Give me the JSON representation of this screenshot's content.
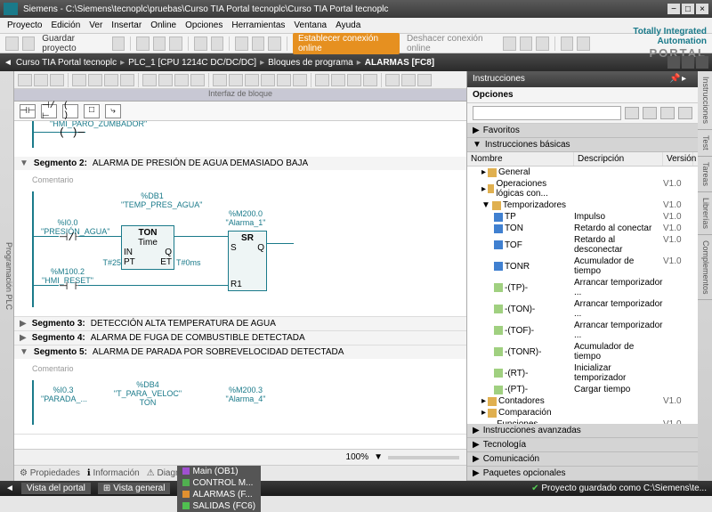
{
  "title": "Siemens  -  C:\\Siemens\\tecnoplc\\pruebas\\Curso TIA Portal tecnoplc\\Curso TIA Portal tecnoplc",
  "menu": [
    "Proyecto",
    "Edición",
    "Ver",
    "Insertar",
    "Online",
    "Opciones",
    "Herramientas",
    "Ventana",
    "Ayuda"
  ],
  "save": "Guardar proyecto",
  "connectOnline": "Establecer conexión online",
  "disconnectOnline": "Deshacer conexión online",
  "branding": {
    "line1": "Totally Integrated Automation",
    "line2": "PORTAL"
  },
  "breadcrumb": [
    "Curso TIA Portal tecnoplc",
    "PLC_1 [CPU 1214C DC/DC/DC]",
    "Bloques de programa",
    "ALARMAS [FC8]"
  ],
  "interfaceBar": "Interfaz de bloque",
  "segments": {
    "s2": {
      "title": "Segmento 2:",
      "desc": "ALARMA DE PRESIÓN DE AGUA DEMASIADO BAJA",
      "comment": "Comentario",
      "db": "%DB1",
      "dbname": "\"TEMP_PRES_AGUA\"",
      "c1addr": "%I0.0",
      "c1name": "\"PRESIÓN_AGUA\"",
      "tonType": "TON",
      "tonLabel": "Time",
      "tonIN": "IN",
      "tonQ": "Q",
      "tonPT": "PT",
      "tonET": "ET",
      "tonPTval": "T#25",
      "tonETval": "T#0ms",
      "c2addr": "%M100.2",
      "c2name": "\"HMI_RESET\"",
      "sraddr": "%M200.0",
      "srname": "\"Alarma_1\"",
      "srType": "SR",
      "srS": "S",
      "srQ": "Q",
      "srR": "R1"
    },
    "s3": {
      "title": "Segmento 3:",
      "desc": "DETECCIÓN ALTA TEMPERATURA DE AGUA"
    },
    "s4": {
      "title": "Segmento 4:",
      "desc": "ALARMA DE FUGA DE COMBUSTIBLE DETECTADA"
    },
    "s5": {
      "title": "Segmento 5:",
      "desc": "ALARMA DE PARADA POR SOBREVELOCIDAD DETECTADA",
      "comment": "Comentario",
      "c1addr": "%I0.3",
      "c1name": "\"PARADA_...",
      "db": "%DB4",
      "dbname": "\"T_PARA_VELOC\"",
      "tonType": "TON",
      "sraddr": "%M200.3",
      "srname": "\"Alarma_4\""
    },
    "coil1": "\"HMI_PARO_ZUMBADOR\""
  },
  "zoom": "100%",
  "tabs": {
    "prop": "Propiedades",
    "info": "Información",
    "diag": "Diagnóstico"
  },
  "rp": {
    "title": "Instrucciones",
    "options": "Opciones",
    "fav": "Favoritos",
    "basic": "Instrucciones básicas",
    "cols": {
      "name": "Nombre",
      "desc": "Descripción",
      "ver": "Versión"
    },
    "tree": [
      {
        "ind": 1,
        "i": "folder",
        "n": "General",
        "d": "",
        "v": ""
      },
      {
        "ind": 1,
        "i": "folder",
        "n": "Operaciones lógicas con...",
        "d": "",
        "v": "V1.0"
      },
      {
        "ind": 1,
        "i": "folder",
        "n": "Temporizadores",
        "d": "",
        "v": "V1.0",
        "open": true
      },
      {
        "ind": 2,
        "i": "timer",
        "n": "TP",
        "d": "Impulso",
        "v": "V1.0"
      },
      {
        "ind": 2,
        "i": "timer",
        "n": "TON",
        "d": "Retardo al conectar",
        "v": "V1.0"
      },
      {
        "ind": 2,
        "i": "timer",
        "n": "TOF",
        "d": "Retardo al desconectar",
        "v": "V1.0"
      },
      {
        "ind": 2,
        "i": "timer",
        "n": "TONR",
        "d": "Acumulador de tiempo",
        "v": "V1.0"
      },
      {
        "ind": 2,
        "i": "fn",
        "n": "-(TP)-",
        "d": "Arrancar temporizador ...",
        "v": ""
      },
      {
        "ind": 2,
        "i": "fn",
        "n": "-(TON)-",
        "d": "Arrancar temporizador ...",
        "v": ""
      },
      {
        "ind": 2,
        "i": "fn",
        "n": "-(TOF)-",
        "d": "Arrancar temporizador ...",
        "v": ""
      },
      {
        "ind": 2,
        "i": "fn",
        "n": "-(TONR)-",
        "d": "Acumulador de tiempo",
        "v": ""
      },
      {
        "ind": 2,
        "i": "fn",
        "n": "-(RT)-",
        "d": "Inicializar temporizador",
        "v": ""
      },
      {
        "ind": 2,
        "i": "fn",
        "n": "-(PT)-",
        "d": "Cargar tiempo",
        "v": ""
      },
      {
        "ind": 1,
        "i": "folder",
        "n": "Contadores",
        "d": "",
        "v": "V1.0"
      },
      {
        "ind": 1,
        "i": "folder",
        "n": "Comparación",
        "d": "",
        "v": ""
      },
      {
        "ind": 1,
        "i": "folder",
        "n": "Funciones matemáticas",
        "d": "",
        "v": "V1.0"
      },
      {
        "ind": 1,
        "i": "folder",
        "n": "Transferencia",
        "d": "",
        "v": "V2.4",
        "link": true
      },
      {
        "ind": 1,
        "i": "folder",
        "n": "Conversión",
        "d": "",
        "v": ""
      },
      {
        "ind": 1,
        "i": "folder",
        "n": "Control del programa",
        "d": "",
        "v": "V1.1"
      },
      {
        "ind": 1,
        "i": "folder",
        "n": "Operaciones lógicas con...",
        "d": "",
        "v": "V1.4"
      },
      {
        "ind": 1,
        "i": "folder",
        "n": "Desplazamiento y rotación",
        "d": "",
        "v": ""
      }
    ],
    "adv": "Instrucciones avanzadas",
    "tech": "Tecnología",
    "comm": "Comunicación",
    "opt": "Paquetes opcionales"
  },
  "rightTabs": [
    "Instrucciones",
    "Test",
    "Tareas",
    "Librerías",
    "Complementos"
  ],
  "status": {
    "portal": "Vista del portal",
    "general": "Vista general",
    "tabs": [
      {
        "n": "Main (OB1)",
        "c": "#a050d0"
      },
      {
        "n": "CONTROL M...",
        "c": "#50b050"
      },
      {
        "n": "ALARMAS (F...",
        "c": "#e09030"
      },
      {
        "n": "SALIDAS (FC6)",
        "c": "#50c050"
      }
    ],
    "msg": "Proyecto guardado como C:\\Siemens\\te..."
  }
}
